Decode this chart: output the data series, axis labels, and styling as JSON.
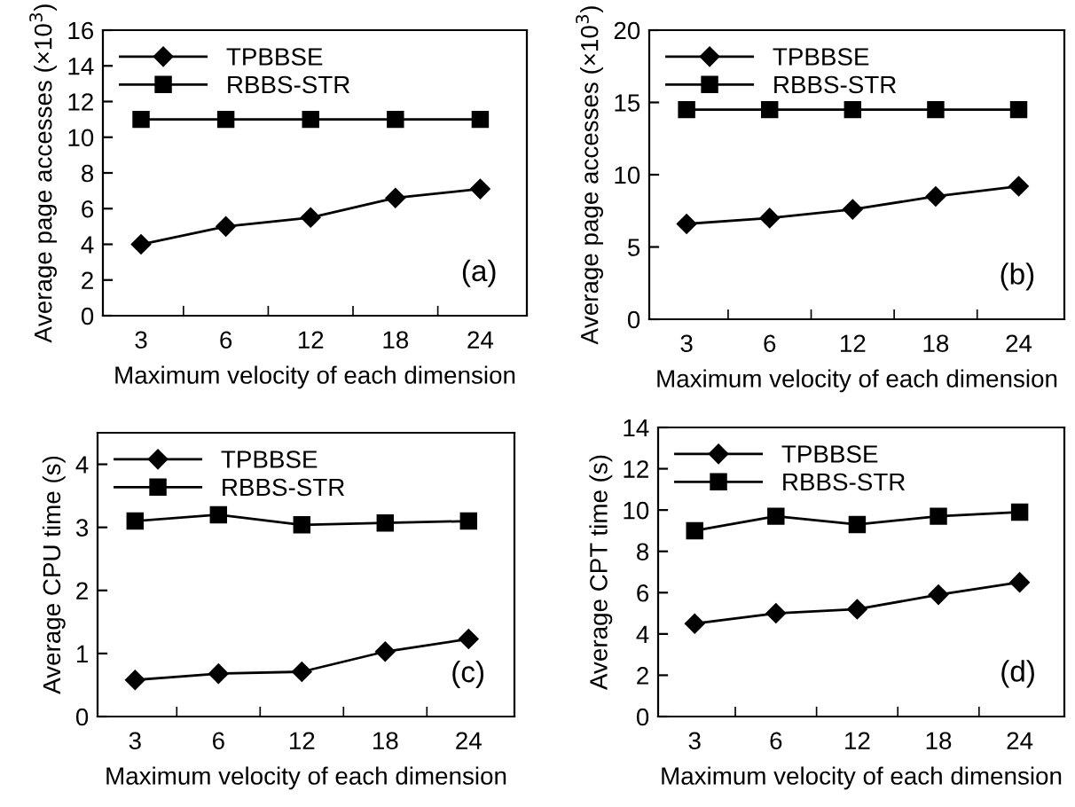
{
  "chart_data": [
    {
      "type": "line",
      "categories": [
        "3",
        "6",
        "12",
        "18",
        "24"
      ],
      "xlabel": "Maximum velocity of each dimension",
      "ylabel": "Average page accesses (×10$^{3}$)",
      "ylim": [
        0,
        16
      ],
      "yticks": [
        0,
        2,
        4,
        6,
        8,
        10,
        12,
        14,
        16
      ],
      "legend": "top left",
      "grid": false,
      "annotations": [
        "(a)"
      ],
      "series": [
        {
          "name": "TPBBSE",
          "color": "#000000",
          "marker": "diamond",
          "values": [
            4.0,
            5.0,
            5.5,
            6.6,
            7.1
          ]
        },
        {
          "name": "RBBS-STR",
          "color": "#000000",
          "marker": "square",
          "values": [
            11,
            11,
            11,
            11,
            11
          ]
        }
      ]
    },
    {
      "type": "line",
      "categories": [
        "3",
        "6",
        "12",
        "18",
        "24"
      ],
      "xlabel": "Maximum velocity of each dimension",
      "ylabel": "Average page accesses (×10$^{3}$)",
      "ylim": [
        0,
        20
      ],
      "yticks": [
        0,
        5,
        10,
        15,
        20
      ],
      "legend": "top left",
      "grid": false,
      "annotations": [
        "(b)"
      ],
      "series": [
        {
          "name": "TPBBSE",
          "color": "#000000",
          "marker": "diamond",
          "values": [
            6.6,
            7.0,
            7.6,
            8.5,
            9.2
          ]
        },
        {
          "name": "RBBS-STR",
          "color": "#000000",
          "marker": "square",
          "values": [
            14.5,
            14.5,
            14.5,
            14.5,
            14.5
          ]
        }
      ]
    },
    {
      "type": "line",
      "categories": [
        "3",
        "6",
        "12",
        "18",
        "24"
      ],
      "xlabel": "Maximum velocity of each dimension",
      "ylabel": "Average CPU time (s)",
      "ylim": [
        0,
        4.5
      ],
      "yticks": [
        0,
        1,
        2,
        3,
        4
      ],
      "legend": "top left",
      "grid": false,
      "annotations": [
        "(c)"
      ],
      "series": [
        {
          "name": "TPBBSE",
          "color": "#000000",
          "marker": "diamond",
          "values": [
            0.58,
            0.68,
            0.71,
            1.03,
            1.23
          ]
        },
        {
          "name": "RBBS-STR",
          "color": "#000000",
          "marker": "square",
          "values": [
            3.1,
            3.2,
            3.04,
            3.07,
            3.1
          ]
        }
      ]
    },
    {
      "type": "line",
      "categories": [
        "3",
        "6",
        "12",
        "18",
        "24"
      ],
      "xlabel": "Maximum velocity of each dimension",
      "ylabel": "Average CPT time (s)",
      "ylim": [
        0,
        14
      ],
      "yticks": [
        0,
        2,
        4,
        6,
        8,
        10,
        12,
        14
      ],
      "legend": "top left",
      "grid": false,
      "annotations": [
        "(d)"
      ],
      "series": [
        {
          "name": "TPBBSE",
          "color": "#000000",
          "marker": "diamond",
          "values": [
            4.5,
            5.0,
            5.2,
            5.9,
            6.5
          ]
        },
        {
          "name": "RBBS-STR",
          "color": "#000000",
          "marker": "square",
          "values": [
            9.0,
            9.7,
            9.3,
            9.7,
            9.9
          ]
        }
      ]
    }
  ]
}
